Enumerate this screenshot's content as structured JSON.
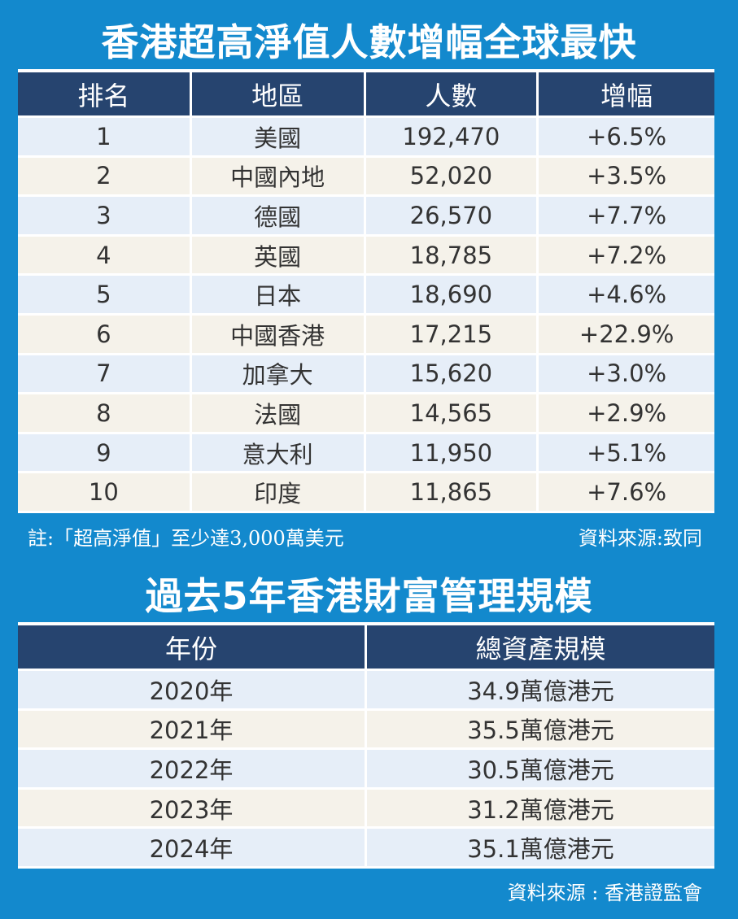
{
  "table1": {
    "title": "香港超高淨值人數增幅全球最快",
    "headers": [
      "排名",
      "地區",
      "人數",
      "增幅"
    ],
    "rows": [
      [
        "1",
        "美國",
        "192,470",
        "+6.5%"
      ],
      [
        "2",
        "中國內地",
        "52,020",
        "+3.5%"
      ],
      [
        "3",
        "德國",
        "26,570",
        "+7.7%"
      ],
      [
        "4",
        "英國",
        "18,785",
        "+7.2%"
      ],
      [
        "5",
        "日本",
        "18,690",
        "+4.6%"
      ],
      [
        "6",
        "中國香港",
        "17,215",
        "+22.9%"
      ],
      [
        "7",
        "加拿大",
        "15,620",
        "+3.0%"
      ],
      [
        "8",
        "法國",
        "14,565",
        "+2.9%"
      ],
      [
        "9",
        "意大利",
        "11,950",
        "+5.1%"
      ],
      [
        "10",
        "印度",
        "11,865",
        "+7.6%"
      ]
    ],
    "note": "註:「超高淨值」至少達3,000萬美元",
    "source": "資料來源:致同"
  },
  "table2": {
    "title": "過去5年香港財富管理規模",
    "headers": [
      "年份",
      "總資產規模"
    ],
    "rows": [
      [
        "2020年",
        "34.9萬億港元"
      ],
      [
        "2021年",
        "35.5萬億港元"
      ],
      [
        "2022年",
        "30.5萬億港元"
      ],
      [
        "2023年",
        "31.2萬億港元"
      ],
      [
        "2024年",
        "35.1萬億港元"
      ]
    ],
    "source": "資料來源 : 香港證監會"
  },
  "colors": {
    "background": "#1389cd",
    "header": "#26446f",
    "row_odd": "#e6eef8",
    "row_even": "#f5f2ea"
  }
}
